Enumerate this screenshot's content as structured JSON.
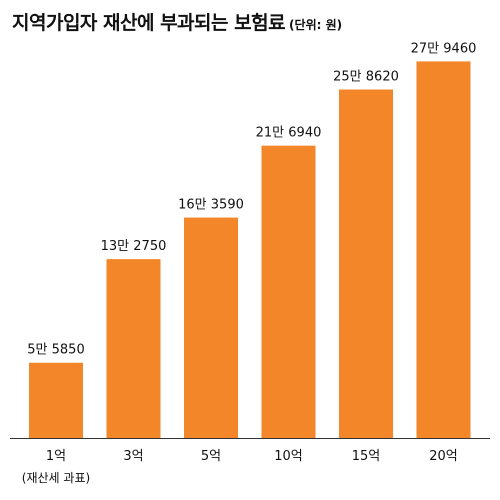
{
  "header": {
    "title": "지역가입자 재산에 부과되는 보험료",
    "unit": "(단위: 원)"
  },
  "chart_data": {
    "type": "bar",
    "title": "지역가입자 재산에 부과되는 보험료",
    "unit_label": "(단위: 원)",
    "categories": [
      "1억",
      "3억",
      "5억",
      "10억",
      "15억",
      "20억"
    ],
    "values": [
      55850,
      132750,
      163590,
      216940,
      258620,
      279460
    ],
    "value_labels": [
      "5만 5850",
      "13만 2750",
      "16만 3590",
      "21만 6940",
      "25만 8620",
      "27만 9460"
    ],
    "x_note": "(재산세 과표)",
    "xlabel": "",
    "ylabel": "",
    "ylim": [
      0,
      282000
    ],
    "grid": false,
    "legend": "none",
    "bar_color": "#f4862a",
    "axis_color": "#333333"
  }
}
